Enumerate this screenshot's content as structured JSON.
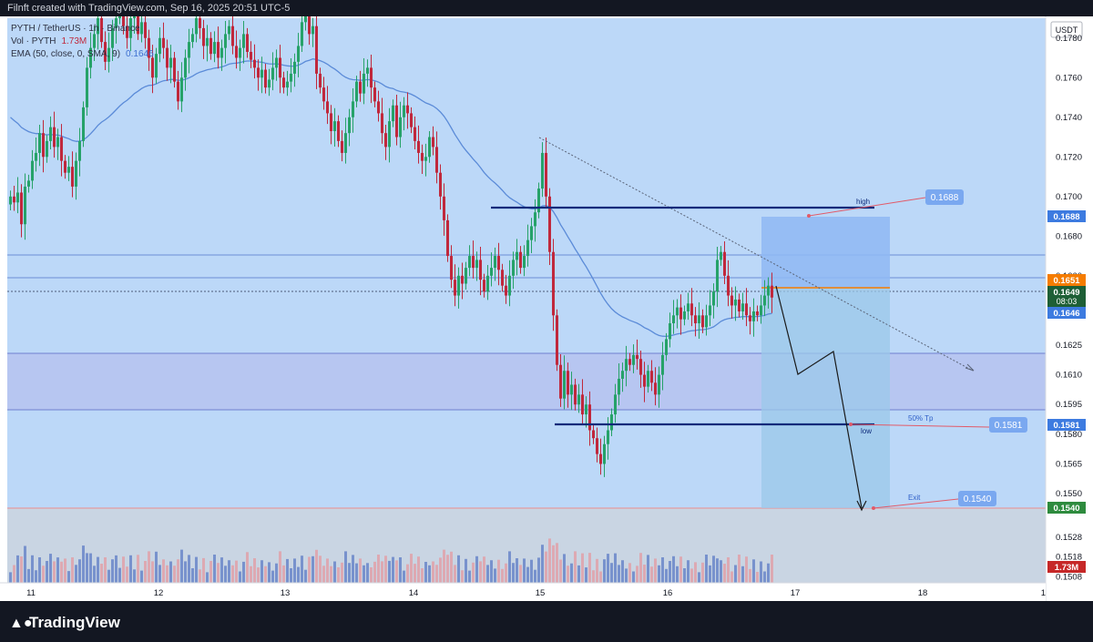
{
  "header": {
    "created": "Filnft created with TradingView.com, Sep 16, 2025 20:51 UTC-5"
  },
  "legend": {
    "line1": "PYTH / TetherUS · 1h · Binance",
    "vol_label": "Vol · PYTH",
    "vol_value": "1.73M",
    "ema_label": "EMA (50, close, 0, SMA, 9)",
    "ema_value": "0.1646"
  },
  "axis": {
    "currency": "USDT",
    "price_ticks": [
      "0.1780",
      "0.1760",
      "0.1740",
      "0.1720",
      "0.1700",
      "0.1680",
      "0.1660",
      "0.1625",
      "0.1610",
      "0.1595",
      "0.1580",
      "0.1565",
      "0.1550",
      "0.1528",
      "0.1518",
      "0.1508"
    ],
    "time_ticks": [
      "11",
      "12",
      "13",
      "14",
      "15",
      "16",
      "17",
      "18",
      "1"
    ]
  },
  "tags": {
    "high": "0.1688",
    "current": "0.1651",
    "last": "0.1649",
    "countdown": "08:03",
    "ema": "0.1646",
    "tp": "0.1581",
    "exit": "0.1540",
    "vol": "1.73M"
  },
  "annotations": {
    "high_label": "high",
    "high_price": "0.1688",
    "low_label": "low",
    "tp_label": "50% Tp",
    "tp_price": "0.1581",
    "exit_label": "Exit",
    "exit_price": "0.1540"
  },
  "brand": {
    "name": "TradingView"
  },
  "colors": {
    "chart_bg": "#bcd8f8",
    "up": "#26a269",
    "down": "#c0283c",
    "ema": "#5b8bd8",
    "level": "#0d2a7a",
    "tag_blue": "#3d7be0",
    "tag_orange": "#f57c00",
    "tag_green": "#2e8b3e",
    "tag_red": "#c62828"
  },
  "chart_data": {
    "type": "candlestick",
    "symbol": "PYTH / TetherUS",
    "ylim": [
      0.1505,
      0.179
    ],
    "key_levels": {
      "high": 0.1688,
      "tp": 0.1581,
      "exit": 0.154
    },
    "closes": [
      0.17,
      0.1697,
      0.1702,
      0.1686,
      0.1705,
      0.1708,
      0.1718,
      0.1722,
      0.1732,
      0.172,
      0.1728,
      0.1735,
      0.1725,
      0.173,
      0.1718,
      0.1712,
      0.1715,
      0.1705,
      0.1718,
      0.1728,
      0.1745,
      0.1765,
      0.1775,
      0.1782,
      0.179,
      0.1778,
      0.1768,
      0.1775,
      0.1785,
      0.179,
      0.1792,
      0.1786,
      0.178,
      0.179,
      0.1795,
      0.1782,
      0.1788,
      0.178,
      0.177,
      0.176,
      0.1772,
      0.178,
      0.1775,
      0.1765,
      0.177,
      0.1758,
      0.1748,
      0.176,
      0.177,
      0.1778,
      0.1782,
      0.179,
      0.1785,
      0.1776,
      0.178,
      0.1772,
      0.1778,
      0.177,
      0.1775,
      0.1782,
      0.1786,
      0.1776,
      0.177,
      0.1775,
      0.1782,
      0.1773,
      0.1769,
      0.1765,
      0.176,
      0.1764,
      0.1755,
      0.1759,
      0.1765,
      0.177,
      0.176,
      0.1755,
      0.1758,
      0.1762,
      0.1768,
      0.1776,
      0.1788,
      0.1795,
      0.1782,
      0.1786,
      0.1762,
      0.1755,
      0.1748,
      0.1742,
      0.1733,
      0.1738,
      0.1728,
      0.1722,
      0.1732,
      0.174,
      0.1748,
      0.1758,
      0.1752,
      0.1762,
      0.1765,
      0.1755,
      0.1748,
      0.1742,
      0.1732,
      0.1725,
      0.1738,
      0.1746,
      0.173,
      0.174,
      0.1746,
      0.1742,
      0.1735,
      0.1728,
      0.1722,
      0.1718,
      0.172,
      0.173,
      0.1725,
      0.1712,
      0.17,
      0.1688,
      0.167,
      0.1658,
      0.165,
      0.166,
      0.1656,
      0.1664,
      0.167,
      0.1664,
      0.1668,
      0.1658,
      0.1652,
      0.166,
      0.1664,
      0.167,
      0.1663,
      0.1655,
      0.165,
      0.166,
      0.1668,
      0.1672,
      0.1664,
      0.167,
      0.1678,
      0.1685,
      0.1692,
      0.1704,
      0.1722,
      0.17,
      0.1672,
      0.164,
      0.1615,
      0.1598,
      0.1612,
      0.16,
      0.1605,
      0.1595,
      0.16,
      0.159,
      0.1595,
      0.1582,
      0.1578,
      0.157,
      0.1565,
      0.1575,
      0.1582,
      0.159,
      0.16,
      0.1608,
      0.1612,
      0.1618,
      0.1615,
      0.162,
      0.1618,
      0.161,
      0.1604,
      0.1612,
      0.1606,
      0.16,
      0.161,
      0.162,
      0.1628,
      0.1636,
      0.164,
      0.1644,
      0.1638,
      0.1642,
      0.1646,
      0.164,
      0.1636,
      0.164,
      0.1634,
      0.164,
      0.1645,
      0.1652,
      0.1668,
      0.1672,
      0.166,
      0.165,
      0.1645,
      0.1648,
      0.1642,
      0.1646,
      0.164,
      0.1637,
      0.1642,
      0.164,
      0.1645,
      0.165,
      0.1655,
      0.1649
    ]
  }
}
